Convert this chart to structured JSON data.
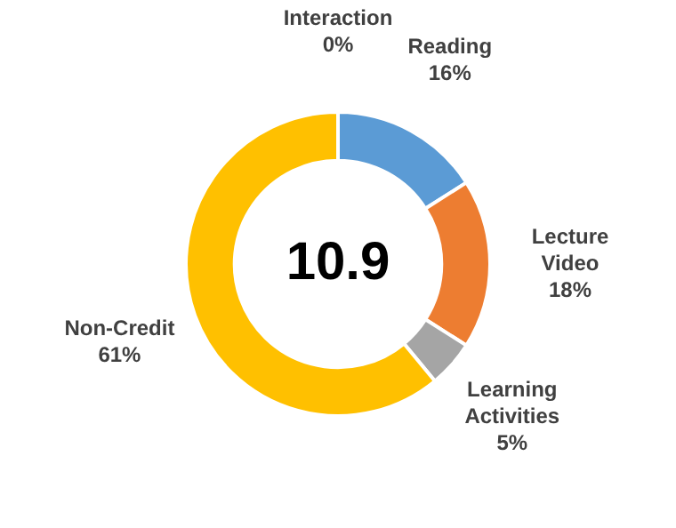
{
  "chart_data": {
    "type": "donut",
    "categories": [
      "Interaction",
      "Reading",
      "Lecture Video",
      "Learning Activities",
      "Non-Credit"
    ],
    "values": [
      0,
      16,
      18,
      5,
      61
    ],
    "colors": [
      "#4472c4",
      "#5b9bd5",
      "#ed7d31",
      "#a5a5a5",
      "#ffc000"
    ],
    "value_labels": [
      "0%",
      "16%",
      "18%",
      "5%",
      "61%"
    ],
    "annotations": [
      "10.9"
    ],
    "legend": false
  }
}
